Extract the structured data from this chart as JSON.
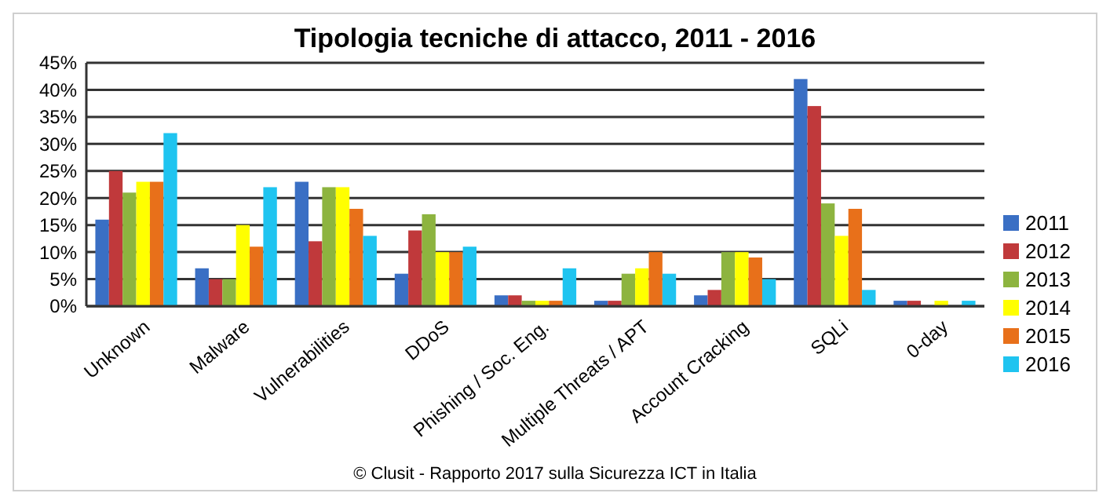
{
  "chart_data": {
    "type": "bar",
    "title": "Tipologia tecniche di attacco, 2011 - 2016",
    "categories": [
      "Unknown",
      "Malware",
      "Vulnerabilities",
      "DDoS",
      "Phishing / Soc. Eng.",
      "Multiple Threats / APT",
      "Account Cracking",
      "SQLi",
      "0-day"
    ],
    "series": [
      {
        "name": "2011",
        "color": "#3a6fc4",
        "values": [
          16,
          7,
          23,
          6,
          2,
          1,
          2,
          42,
          1
        ]
      },
      {
        "name": "2012",
        "color": "#c0393b",
        "values": [
          25,
          5,
          12,
          14,
          2,
          1,
          3,
          37,
          1
        ]
      },
      {
        "name": "2013",
        "color": "#8db43f",
        "values": [
          21,
          5,
          22,
          17,
          1,
          6,
          10,
          19,
          0
        ]
      },
      {
        "name": "2014",
        "color": "#ffff00",
        "values": [
          23,
          15,
          22,
          10,
          1,
          7,
          10,
          13,
          1
        ]
      },
      {
        "name": "2015",
        "color": "#e8701a",
        "values": [
          23,
          11,
          18,
          10,
          1,
          10,
          9,
          18,
          0
        ]
      },
      {
        "name": "2016",
        "color": "#1fc4f0",
        "values": [
          32,
          22,
          13,
          11,
          7,
          6,
          5,
          3,
          1
        ]
      }
    ],
    "ylim": [
      0,
      45
    ],
    "yticks": [
      {
        "value": 0,
        "label": "0%"
      },
      {
        "value": 5,
        "label": "5%"
      },
      {
        "value": 10,
        "label": "10%"
      },
      {
        "value": 15,
        "label": "15%"
      },
      {
        "value": 20,
        "label": "20%"
      },
      {
        "value": 25,
        "label": "25%"
      },
      {
        "value": 30,
        "label": "30%"
      },
      {
        "value": 35,
        "label": "35%"
      },
      {
        "value": 40,
        "label": "40%"
      },
      {
        "value": 45,
        "label": "45%"
      }
    ],
    "grid": "y",
    "legend": "right",
    "annotations": [
      "© Clusit - Rapporto 2017 sulla Sicurezza ICT in Italia"
    ]
  }
}
